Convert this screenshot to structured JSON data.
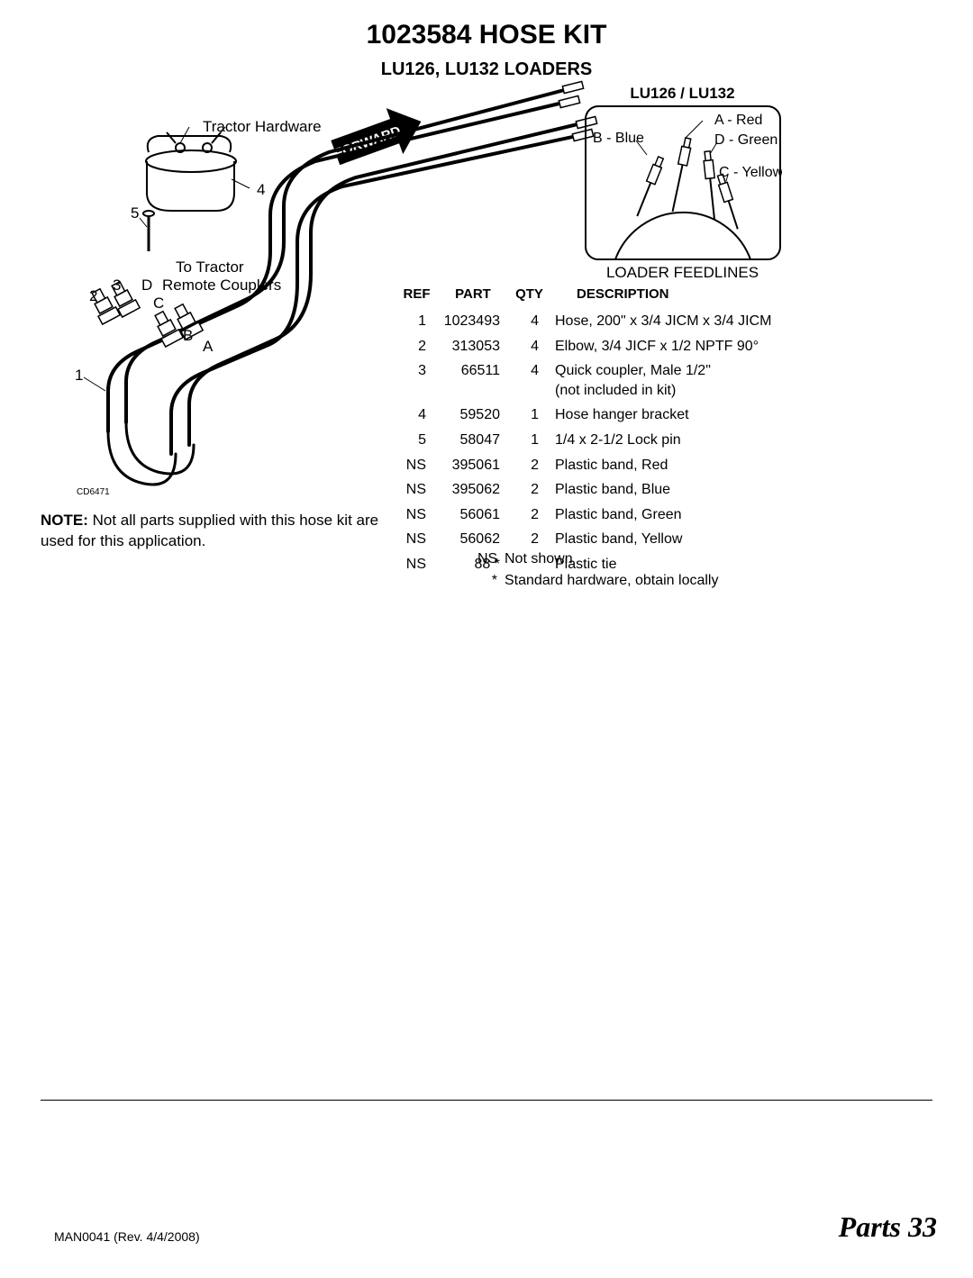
{
  "title": "1023584 HOSE KIT",
  "subtitle": "LU126, LU132 LOADERS",
  "diagram": {
    "tractor_hardware": "Tractor Hardware",
    "to_tractor": "To Tractor",
    "remote_couplers": "Remote Couplers",
    "forward": "FORWARD",
    "cd_ref": "CD6471",
    "callouts": {
      "n1": "1",
      "n2": "2",
      "n3": "3",
      "n4": "4",
      "n5": "5",
      "A": "A",
      "B": "B",
      "C": "C",
      "D": "D"
    }
  },
  "feedlines": {
    "box_title": "LU126 / LU132",
    "a": "A - Red",
    "b": "B - Blue",
    "c": "C - Yellow",
    "d": "D - Green",
    "caption": "LOADER FEEDLINES"
  },
  "note_bold": "NOTE:",
  "note_text": " Not all parts supplied with this hose kit are used for this application.",
  "table": {
    "headers": {
      "ref": "REF",
      "part": "PART",
      "qty": "QTY",
      "desc": "DESCRIPTION"
    },
    "rows": [
      {
        "ref": "1",
        "part": "1023493",
        "qty": "4",
        "desc": "Hose, 200\" x 3/4 JICM x 3/4 JICM"
      },
      {
        "ref": "2",
        "part": "313053",
        "qty": "4",
        "desc": "Elbow, 3/4 JICF x 1/2 NPTF 90°"
      },
      {
        "ref": "3",
        "part": "66511",
        "qty": "4",
        "desc": "Quick coupler, Male 1/2\"\n(not included in kit)"
      },
      {
        "ref": "4",
        "part": "59520",
        "qty": "1",
        "desc": "Hose hanger bracket"
      },
      {
        "ref": "5",
        "part": "58047",
        "qty": "1",
        "desc": "1/4 x 2-1/2 Lock pin"
      },
      {
        "ref": "NS",
        "part": "395061",
        "qty": "2",
        "desc": "Plastic band, Red"
      },
      {
        "ref": "NS",
        "part": "395062",
        "qty": "2",
        "desc": "Plastic band, Blue"
      },
      {
        "ref": "NS",
        "part": "56061",
        "qty": "2",
        "desc": "Plastic band, Green"
      },
      {
        "ref": "NS",
        "part": "56062",
        "qty": "2",
        "desc": "Plastic band, Yellow"
      },
      {
        "ref": "NS",
        "part": "88 *",
        "qty": "",
        "desc": "Plastic tie"
      }
    ]
  },
  "legend": {
    "ns_sym": "NS",
    "ns_text": "Not shown",
    "star_sym": "*",
    "star_text": "Standard hardware, obtain locally"
  },
  "footer": {
    "left": "MAN0041 (Rev. 4/4/2008)",
    "right_label": "Parts ",
    "right_num": "33"
  },
  "colors": {
    "text": "#000000",
    "bg": "#ffffff",
    "arrow_fill": "#000000"
  }
}
